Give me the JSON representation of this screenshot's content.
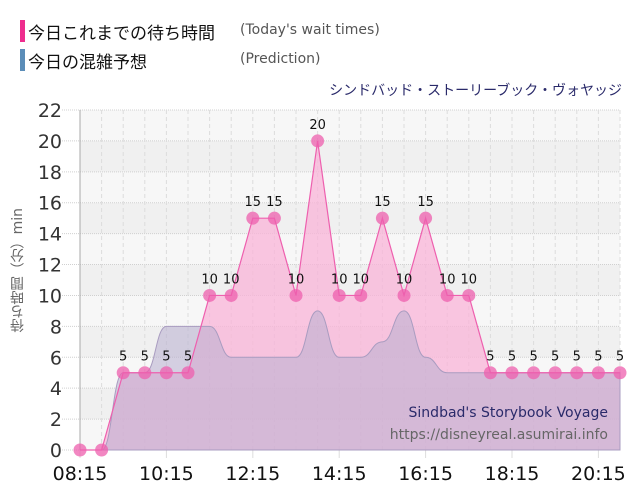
{
  "legend": [
    {
      "label_jp": "今日これまでの待ち時間",
      "label_en": "(Today's wait times)",
      "color": "#ee2d8e"
    },
    {
      "label_jp": "今日の混雑予想",
      "label_en": "(Prediction)",
      "color": "#5b8db8"
    }
  ],
  "attraction_name_jp": "シンドバッド・ストーリーブック・ヴォヤッジ",
  "watermark": {
    "name_en": "Sindbad's Storybook Voyage",
    "url": "https://disneyreal.asumirai.info"
  },
  "y_axis_label": "待ち時間（分）min",
  "chart_data": {
    "type": "area",
    "title": "シンドバッド・ストーリーブック・ヴォヤッジ",
    "xlabel": "",
    "ylabel": "待ち時間（分）min",
    "ylim": [
      0,
      22
    ],
    "yticks": [
      0,
      2,
      4,
      6,
      8,
      10,
      12,
      14,
      16,
      18,
      20,
      22
    ],
    "xtick_labels": [
      "08:15",
      "10:15",
      "12:15",
      "14:15",
      "16:15",
      "18:15",
      "20:15"
    ],
    "grid": true,
    "legend_position": "top-left",
    "x": [
      "08:15",
      "08:45",
      "09:15",
      "09:45",
      "10:15",
      "10:45",
      "11:15",
      "11:45",
      "12:15",
      "12:45",
      "13:15",
      "13:45",
      "14:15",
      "14:45",
      "15:15",
      "15:45",
      "16:15",
      "16:45",
      "17:15",
      "17:45",
      "18:15",
      "18:45",
      "19:15",
      "19:45",
      "20:15",
      "20:45"
    ],
    "series": [
      {
        "name": "Today's wait times",
        "color": "#ee5fae",
        "values": [
          0,
          0,
          5,
          5,
          5,
          5,
          10,
          10,
          15,
          15,
          10,
          20,
          10,
          10,
          15,
          10,
          15,
          10,
          10,
          5,
          5,
          5,
          5,
          5,
          5,
          5
        ]
      },
      {
        "name": "Prediction",
        "color": "#9aaac0",
        "values": [
          0,
          0,
          5,
          5,
          8,
          8,
          8,
          6,
          6,
          6,
          6,
          9,
          6,
          6,
          7,
          9,
          6,
          5,
          5,
          5,
          5,
          5,
          5,
          5,
          5,
          5
        ]
      }
    ]
  }
}
